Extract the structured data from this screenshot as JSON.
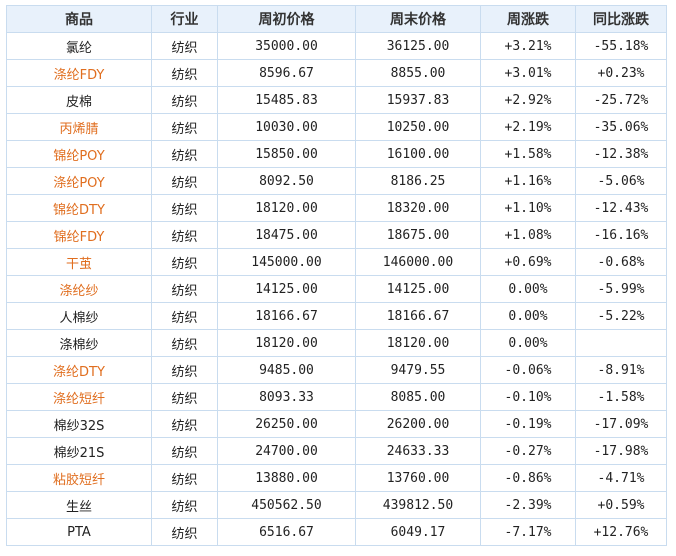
{
  "table": {
    "columns": [
      "商品",
      "行业",
      "周初价格",
      "周末价格",
      "周涨跌",
      "同比涨跌"
    ],
    "rows": [
      {
        "name": "氯纶",
        "link": false,
        "industry": "纺织",
        "start": "35000.00",
        "end": "36125.00",
        "weekly": "+3.21%",
        "yoy": "-55.18%"
      },
      {
        "name": "涤纶FDY",
        "link": true,
        "industry": "纺织",
        "start": "8596.67",
        "end": "8855.00",
        "weekly": "+3.01%",
        "yoy": "+0.23%"
      },
      {
        "name": "皮棉",
        "link": false,
        "industry": "纺织",
        "start": "15485.83",
        "end": "15937.83",
        "weekly": "+2.92%",
        "yoy": "-25.72%"
      },
      {
        "name": "丙烯腈",
        "link": true,
        "industry": "纺织",
        "start": "10030.00",
        "end": "10250.00",
        "weekly": "+2.19%",
        "yoy": "-35.06%"
      },
      {
        "name": "锦纶POY",
        "link": true,
        "industry": "纺织",
        "start": "15850.00",
        "end": "16100.00",
        "weekly": "+1.58%",
        "yoy": "-12.38%"
      },
      {
        "name": "涤纶POY",
        "link": true,
        "industry": "纺织",
        "start": "8092.50",
        "end": "8186.25",
        "weekly": "+1.16%",
        "yoy": "-5.06%"
      },
      {
        "name": "锦纶DTY",
        "link": true,
        "industry": "纺织",
        "start": "18120.00",
        "end": "18320.00",
        "weekly": "+1.10%",
        "yoy": "-12.43%"
      },
      {
        "name": "锦纶FDY",
        "link": true,
        "industry": "纺织",
        "start": "18475.00",
        "end": "18675.00",
        "weekly": "+1.08%",
        "yoy": "-16.16%"
      },
      {
        "name": "干茧",
        "link": true,
        "industry": "纺织",
        "start": "145000.00",
        "end": "146000.00",
        "weekly": "+0.69%",
        "yoy": "-0.68%"
      },
      {
        "name": "涤纶纱",
        "link": true,
        "industry": "纺织",
        "start": "14125.00",
        "end": "14125.00",
        "weekly": "0.00%",
        "yoy": "-5.99%"
      },
      {
        "name": "人棉纱",
        "link": false,
        "industry": "纺织",
        "start": "18166.67",
        "end": "18166.67",
        "weekly": "0.00%",
        "yoy": "-5.22%"
      },
      {
        "name": "涤棉纱",
        "link": false,
        "industry": "纺织",
        "start": "18120.00",
        "end": "18120.00",
        "weekly": "0.00%",
        "yoy": ""
      },
      {
        "name": "涤纶DTY",
        "link": true,
        "industry": "纺织",
        "start": "9485.00",
        "end": "9479.55",
        "weekly": "-0.06%",
        "yoy": "-8.91%"
      },
      {
        "name": "涤纶短纤",
        "link": true,
        "industry": "纺织",
        "start": "8093.33",
        "end": "8085.00",
        "weekly": "-0.10%",
        "yoy": "-1.58%"
      },
      {
        "name": "棉纱32S",
        "link": false,
        "industry": "纺织",
        "start": "26250.00",
        "end": "26200.00",
        "weekly": "-0.19%",
        "yoy": "-17.09%"
      },
      {
        "name": "棉纱21S",
        "link": false,
        "industry": "纺织",
        "start": "24700.00",
        "end": "24633.33",
        "weekly": "-0.27%",
        "yoy": "-17.98%"
      },
      {
        "name": "粘胶短纤",
        "link": true,
        "industry": "纺织",
        "start": "13880.00",
        "end": "13760.00",
        "weekly": "-0.86%",
        "yoy": "-4.71%"
      },
      {
        "name": "生丝",
        "link": false,
        "industry": "纺织",
        "start": "450562.50",
        "end": "439812.50",
        "weekly": "-2.39%",
        "yoy": "+0.59%"
      },
      {
        "name": "PTA",
        "link": false,
        "industry": "纺织",
        "start": "6516.67",
        "end": "6049.17",
        "weekly": "-7.17%",
        "yoy": "+12.76%"
      }
    ]
  },
  "colors": {
    "link_text": "#e06e1f",
    "positive": "#e2262b",
    "negative": "#1f8a1f",
    "header_bg": "#e8f1fb",
    "border": "#c9dcef"
  }
}
